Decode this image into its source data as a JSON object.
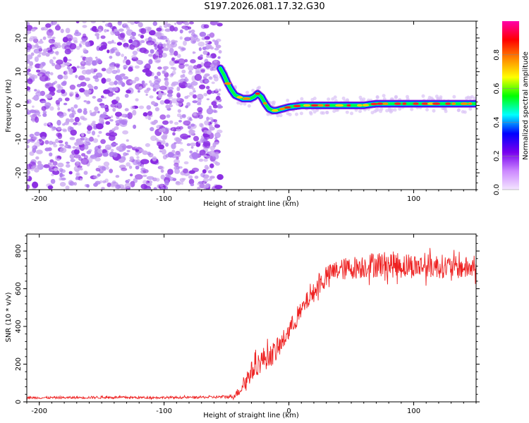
{
  "page": {
    "title": "S197.2026.081.17.32.G30"
  },
  "colors": {
    "snr_line": "#ee2222",
    "scatter_purple": "#8a2be2",
    "scatter_light": "#c9a6f0",
    "axis": "#000000"
  },
  "chart_data": [
    {
      "type": "heatmap",
      "title": "",
      "xlabel": "Height of straight line (km)",
      "ylabel": "Frequency (Hz)",
      "xlim": [
        -210,
        150
      ],
      "ylim": [
        -25,
        25
      ],
      "x_ticks": [
        -200,
        -100,
        0,
        100
      ],
      "x_tick_labels": [
        "-200",
        "-100",
        "0",
        "100"
      ],
      "y_ticks": [
        -20,
        -10,
        0,
        10,
        20
      ],
      "y_tick_labels": [
        "-20",
        "-10",
        "0",
        "10",
        "20"
      ],
      "noise_region": {
        "x_range": [
          -210,
          -55
        ],
        "y_range": [
          -25,
          25
        ]
      },
      "ridge": {
        "x": [
          -55,
          -52,
          -49,
          -46,
          -43,
          -40,
          -37,
          -34,
          -31,
          -28,
          -25,
          -22,
          -19,
          -16,
          -13,
          -10,
          -5,
          0,
          10,
          20,
          30,
          40,
          50,
          60,
          70,
          80,
          90,
          100,
          110,
          120,
          130,
          140,
          150
        ],
        "y": [
          11,
          9,
          6.5,
          4.5,
          3,
          2.5,
          2,
          2,
          2,
          2.5,
          3.5,
          2.5,
          0.5,
          -1,
          -1.5,
          -1.5,
          -1,
          -0.5,
          0,
          0,
          0,
          0,
          0,
          0,
          0.5,
          0.5,
          0.5,
          0.5,
          0.5,
          0.5,
          0.5,
          0.5,
          0.5
        ]
      },
      "colorbar": {
        "label": "Normalized spectral amplitude",
        "range": [
          0,
          1
        ],
        "ticks": [
          0.0,
          0.2,
          0.4,
          0.6,
          0.8
        ],
        "tick_labels": [
          "0.0",
          "0.2",
          "0.4",
          "0.6",
          "0.8"
        ],
        "colors": [
          "#f4e6ff",
          "#cc88ff",
          "#7700ee",
          "#0000ff",
          "#00ffff",
          "#00ff00",
          "#ffff00",
          "#ff8800",
          "#ff0000",
          "#ff00aa"
        ]
      }
    },
    {
      "type": "line",
      "title": "",
      "xlabel": "Height of straight line (km)",
      "ylabel": "SNR (10 * v/v)",
      "xlim": [
        -210,
        150
      ],
      "ylim": [
        0,
        890
      ],
      "x_ticks": [
        -200,
        -100,
        0,
        100
      ],
      "x_tick_labels": [
        "-200",
        "-100",
        "0",
        "100"
      ],
      "y_ticks": [
        0,
        200,
        400,
        600,
        800
      ],
      "y_tick_labels": [
        "0",
        "200",
        "400",
        "600",
        "800"
      ],
      "series": [
        {
          "x": [
            -210,
            -180,
            -150,
            -120,
            -90,
            -60,
            -45,
            -40,
            -35,
            -30,
            -25,
            -20,
            -15,
            -10,
            -5,
            0,
            5,
            10,
            15,
            20,
            25,
            30,
            35,
            40,
            45,
            50,
            60,
            70,
            80,
            90,
            100,
            110,
            120,
            130,
            140,
            150
          ],
          "y": [
            22,
            22,
            24,
            23,
            23,
            25,
            28,
            55,
            110,
            160,
            200,
            230,
            245,
            270,
            320,
            380,
            430,
            480,
            540,
            580,
            630,
            660,
            690,
            700,
            705,
            710,
            720,
            730,
            730,
            725,
            720,
            720,
            720,
            715,
            710,
            710
          ],
          "noise_amplitude": [
            6,
            6,
            7,
            6,
            6,
            7,
            10,
            25,
            45,
            55,
            60,
            65,
            60,
            60,
            55,
            50,
            50,
            50,
            50,
            50,
            55,
            55,
            55,
            55,
            60,
            60,
            65,
            70,
            70,
            70,
            65,
            65,
            65,
            60,
            60,
            60
          ]
        }
      ]
    }
  ]
}
